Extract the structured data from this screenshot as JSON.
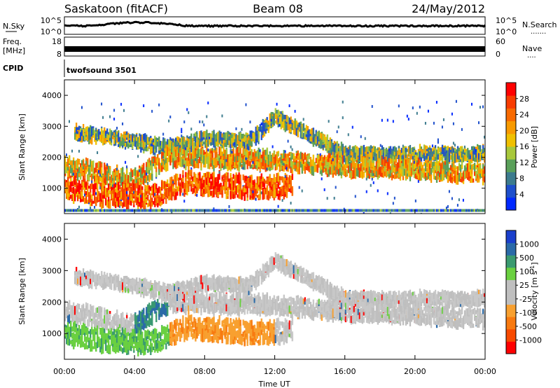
{
  "header": {
    "station": "Saskatoon (fitACF)",
    "beam": "Beam 08",
    "date": "24/May/2012"
  },
  "strips": {
    "nsky_label": "N.Sky",
    "nsearch_label": "N.Search",
    "nsearch_dots": ".......",
    "nsky_ticks": [
      "10^5",
      "10^0"
    ],
    "nsearch_ticks": [
      "10^5",
      "10^0"
    ],
    "freq_label_1": "Freq.",
    "freq_label_2": "[MHz]",
    "freq_ticks": [
      "18",
      "8"
    ],
    "nave_label": "Nave",
    "nave_dots": "....",
    "nave_ticks": [
      "60",
      "0"
    ],
    "cpid_label": "CPID",
    "cpid_value": "twofsound 3501"
  },
  "chart_data": [
    {
      "type": "heatmap",
      "panel": "power",
      "ylabel": "Slant Range [km]",
      "xlabel": "",
      "ylim": [
        180,
        4500
      ],
      "yticks": [
        1000,
        2000,
        3000,
        4000
      ],
      "xlim": [
        0,
        24
      ],
      "colorbar": {
        "label": "Power [dB]",
        "ticks": [
          "4",
          "8",
          "12",
          "16",
          "20",
          "24",
          "28"
        ],
        "colors": [
          "#0028ff",
          "#1e4fcc",
          "#3c7b8e",
          "#5aa05a",
          "#a8c83c",
          "#f0c000",
          "#f89a00",
          "#f86a00",
          "#f83c00",
          "#ff0000"
        ]
      },
      "echo_bands": [
        {
          "description_ref": "upper-arc",
          "t": [
            0.5,
            4,
            6,
            8,
            10.5,
            12,
            16,
            20,
            24
          ],
          "range_km": [
            2800,
            2500,
            2300,
            2600,
            2500,
            3300,
            2100,
            2100,
            2100
          ]
        },
        {
          "description_ref": "mid-band",
          "t": [
            0,
            2,
            4,
            6,
            12,
            16,
            20,
            24
          ],
          "range_km": [
            1700,
            1500,
            1300,
            2000,
            1900,
            1700,
            1600,
            1450
          ]
        },
        {
          "description_ref": "lower-band",
          "t": [
            0,
            2,
            5,
            7,
            9,
            11,
            13
          ],
          "range_km": [
            1000,
            800,
            700,
            1200,
            1100,
            1000,
            1100
          ]
        }
      ]
    },
    {
      "type": "heatmap",
      "panel": "velocity",
      "ylabel": "Slant Range [km]",
      "xlabel": "Time UT",
      "ylim": [
        180,
        4500
      ],
      "yticks": [
        1000,
        2000,
        3000,
        4000
      ],
      "xlim": [
        0,
        24
      ],
      "xtick_labels": [
        "00:00",
        "04:00",
        "08:00",
        "12:00",
        "16:00",
        "20:00",
        "00:00"
      ],
      "colorbar": {
        "label": "Velocity [m s^-1]",
        "ticks": [
          "1000",
          "500",
          "100",
          "25",
          "-25",
          "-100",
          "-500",
          "-1000"
        ],
        "colors": [
          "#1a3fcc",
          "#2a6aa8",
          "#3a9a70",
          "#6ad040",
          "#bfbfbf",
          "#bfbfbf",
          "#f8a030",
          "#f87a10",
          "#f84a00",
          "#ff0000"
        ]
      }
    }
  ]
}
